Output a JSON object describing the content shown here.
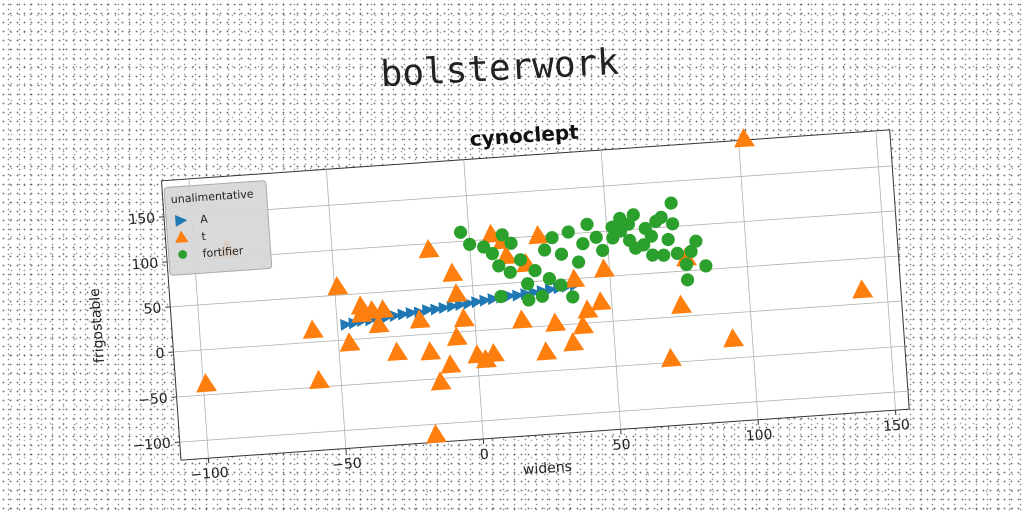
{
  "page_title": "bolsterwork",
  "chart_data": {
    "type": "scatter",
    "title": "cynoclept",
    "xlabel": "widens",
    "ylabel": "frigostable",
    "xlim": [
      -110,
      155
    ],
    "ylim": [
      -120,
      190
    ],
    "xticks": [
      -100,
      -50,
      0,
      50,
      100,
      150
    ],
    "yticks": [
      -100,
      -50,
      0,
      50,
      100,
      150
    ],
    "grid": true,
    "legend": {
      "title": "unalimentative",
      "position": "upper-left"
    },
    "series": [
      {
        "name": "A",
        "marker": "triangle-right",
        "color": "#1f77b4",
        "points": [
          [
            -47,
            17
          ],
          [
            -44,
            18
          ],
          [
            -41,
            20
          ],
          [
            -38,
            20
          ],
          [
            -35,
            21
          ],
          [
            -32,
            22
          ],
          [
            -29,
            23
          ],
          [
            -26,
            24
          ],
          [
            -23,
            25
          ],
          [
            -20,
            25
          ],
          [
            -17,
            27
          ],
          [
            -14,
            27
          ],
          [
            -11,
            28
          ],
          [
            -8,
            29
          ],
          [
            -5,
            30
          ],
          [
            -2,
            31
          ],
          [
            1,
            32
          ],
          [
            4,
            33
          ],
          [
            7,
            34
          ],
          [
            10,
            35
          ],
          [
            13,
            36
          ],
          [
            16,
            36
          ],
          [
            19,
            37
          ],
          [
            22,
            38
          ],
          [
            25,
            39
          ],
          [
            28,
            40
          ],
          [
            31,
            41
          ],
          [
            34,
            42
          ],
          [
            37,
            43
          ]
        ]
      },
      {
        "name": "t",
        "marker": "triangle-up",
        "color": "#ff7f0e",
        "points": [
          [
            -99,
            -38
          ],
          [
            -88,
            109
          ],
          [
            -59,
            13
          ],
          [
            -58,
            -43
          ],
          [
            -49,
            59
          ],
          [
            -46,
            -4
          ],
          [
            -41,
            36
          ],
          [
            -41,
            27
          ],
          [
            -37,
            30
          ],
          [
            -33,
            30
          ],
          [
            -35,
            14
          ],
          [
            -29,
            -18
          ],
          [
            -20,
            16
          ],
          [
            -17,
            -20
          ],
          [
            -14,
            -54
          ],
          [
            -17,
            -112
          ],
          [
            -15,
            93
          ],
          [
            -7,
            65
          ],
          [
            -6,
            42
          ],
          [
            -7,
            -6
          ],
          [
            -10,
            -36
          ],
          [
            -4,
            14
          ],
          [
            0,
            -27
          ],
          [
            3,
            -33
          ],
          [
            6,
            -27
          ],
          [
            8,
            105
          ],
          [
            12,
            97
          ],
          [
            13,
            80
          ],
          [
            17,
            8
          ],
          [
            20,
            70
          ],
          [
            25,
            100
          ],
          [
            25,
            -29
          ],
          [
            29,
            2
          ],
          [
            35,
            -21
          ],
          [
            37,
            49
          ],
          [
            39,
            -3
          ],
          [
            41,
            14
          ],
          [
            46,
            22
          ],
          [
            48,
            58
          ],
          [
            70,
            -46
          ],
          [
            75,
            12
          ],
          [
            78,
            64
          ],
          [
            93,
            -29
          ],
          [
            102,
            191
          ],
          [
            141,
            15
          ]
        ]
      },
      {
        "name": "fortifier",
        "marker": "circle",
        "color": "#2ca02c",
        "points": [
          [
            -3,
            110
          ],
          [
            0,
            96
          ],
          [
            5,
            92
          ],
          [
            8,
            84
          ],
          [
            10,
            70
          ],
          [
            12,
            104
          ],
          [
            15,
            94
          ],
          [
            18,
            75
          ],
          [
            14,
            62
          ],
          [
            20,
            48
          ],
          [
            23,
            62
          ],
          [
            27,
            84
          ],
          [
            30,
            97
          ],
          [
            33,
            78
          ],
          [
            36,
            102
          ],
          [
            39,
            68
          ],
          [
            41,
            88
          ],
          [
            43,
            109
          ],
          [
            46,
            94
          ],
          [
            48,
            79
          ],
          [
            52,
            92
          ],
          [
            52,
            104
          ],
          [
            55,
            113
          ],
          [
            55,
            99
          ],
          [
            58,
            88
          ],
          [
            58,
            106
          ],
          [
            60,
            116
          ],
          [
            60,
            79
          ],
          [
            63,
            82
          ],
          [
            64,
            100
          ],
          [
            66,
            91
          ],
          [
            66,
            70
          ],
          [
            68,
            107
          ],
          [
            70,
            111
          ],
          [
            70,
            69
          ],
          [
            72,
            86
          ],
          [
            74,
            126
          ],
          [
            74,
            103
          ],
          [
            75,
            70
          ],
          [
            78,
            57
          ],
          [
            78,
            40
          ],
          [
            80,
            71
          ],
          [
            82,
            82
          ],
          [
            85,
            54
          ],
          [
            25,
            33
          ],
          [
            32,
            44
          ],
          [
            10,
            36
          ],
          [
            20,
            30
          ],
          [
            28,
            52
          ],
          [
            36,
            30
          ]
        ]
      }
    ]
  }
}
